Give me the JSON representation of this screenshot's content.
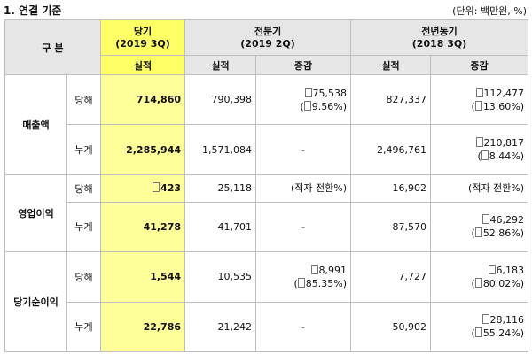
{
  "title": "1. 연결 기준",
  "unit": "(단위: 백만원, %)",
  "header": {
    "group": "구  분",
    "current": "당기",
    "current_period": "(2019 3Q)",
    "prev_q": "전분기",
    "prev_q_period": "(2019 2Q)",
    "prev_y": "전년동기",
    "prev_y_period": "(2018 3Q)",
    "actual": "실적",
    "change": "증감"
  },
  "rows": [
    {
      "category": "매출액",
      "type": "당해",
      "current": "714,860",
      "prev_q": "790,398",
      "prev_q_change": {
        "amount": "75,538",
        "pct": "9.56%)"
      },
      "prev_y": "827,337",
      "prev_y_change": {
        "amount": "112,477",
        "pct": "13.60%)"
      }
    },
    {
      "type": "누계",
      "current": "2,285,944",
      "prev_q": "1,571,084",
      "prev_q_change": "-",
      "prev_y": "2,496,761",
      "prev_y_change": {
        "amount": "210,817",
        "pct": "8.44%)"
      }
    },
    {
      "category": "영업이익",
      "type": "당해",
      "current": "423",
      "prev_q": "25,118",
      "prev_q_change": "(적자 전환%)",
      "prev_y": "16,902",
      "prev_y_change": "(적자 전환%)"
    },
    {
      "type": "누계",
      "current": "41,278",
      "prev_q": "41,701",
      "prev_q_change": "-",
      "prev_y": "87,570",
      "prev_y_change": {
        "amount": "46,292",
        "pct": "52.86%)"
      }
    },
    {
      "category": "당기순이익",
      "type": "당해",
      "current": "1,544",
      "prev_q": "10,535",
      "prev_q_change": {
        "amount": "8,991",
        "pct": "85.35%)"
      },
      "prev_y": "7,727",
      "prev_y_change": {
        "amount": "6,183",
        "pct": "80.02%)"
      }
    },
    {
      "type": "누계",
      "current": "22,786",
      "prev_q": "21,242",
      "prev_q_change": "-",
      "prev_y": "50,902",
      "prev_y_change": {
        "amount": "28,116",
        "pct": "55.24%)"
      }
    }
  ]
}
